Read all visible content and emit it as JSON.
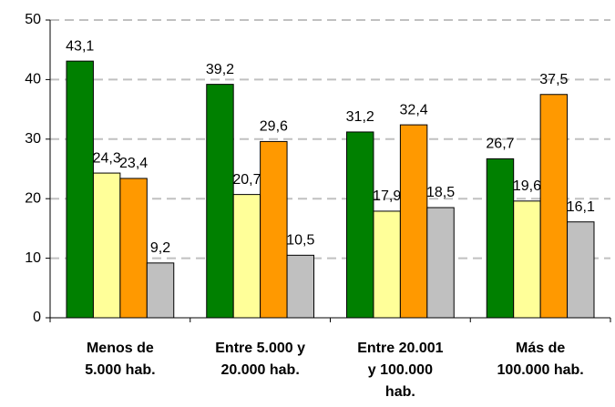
{
  "chart_data": {
    "type": "bar",
    "categories": [
      "Menos de\n5.000 hab.",
      "Entre 5.000 y\n20.000 hab.",
      "Entre 20.001\ny 100.000\nhab.",
      "Más de\n100.000 hab."
    ],
    "series": [
      {
        "color": "#008000",
        "values": [
          43.1,
          39.2,
          31.2,
          26.7
        ],
        "value_labels": [
          "43,1",
          "39,2",
          "31,2",
          "26,7"
        ]
      },
      {
        "color": "#ffff99",
        "values": [
          24.3,
          20.7,
          17.9,
          19.6
        ],
        "value_labels": [
          "24,3",
          "20,7",
          "17,9",
          "19,6"
        ]
      },
      {
        "color": "#ff9900",
        "values": [
          23.4,
          29.6,
          32.4,
          37.5
        ],
        "value_labels": [
          "23,4",
          "29,6",
          "32,4",
          "37,5"
        ]
      },
      {
        "color": "#c0c0c0",
        "values": [
          9.2,
          10.5,
          18.5,
          16.1
        ],
        "value_labels": [
          "9,2",
          "10,5",
          "18,5",
          "16,1"
        ]
      }
    ],
    "ylim": [
      0,
      50
    ],
    "yticks": [
      0,
      10,
      20,
      30,
      40,
      50
    ],
    "grid": true
  }
}
